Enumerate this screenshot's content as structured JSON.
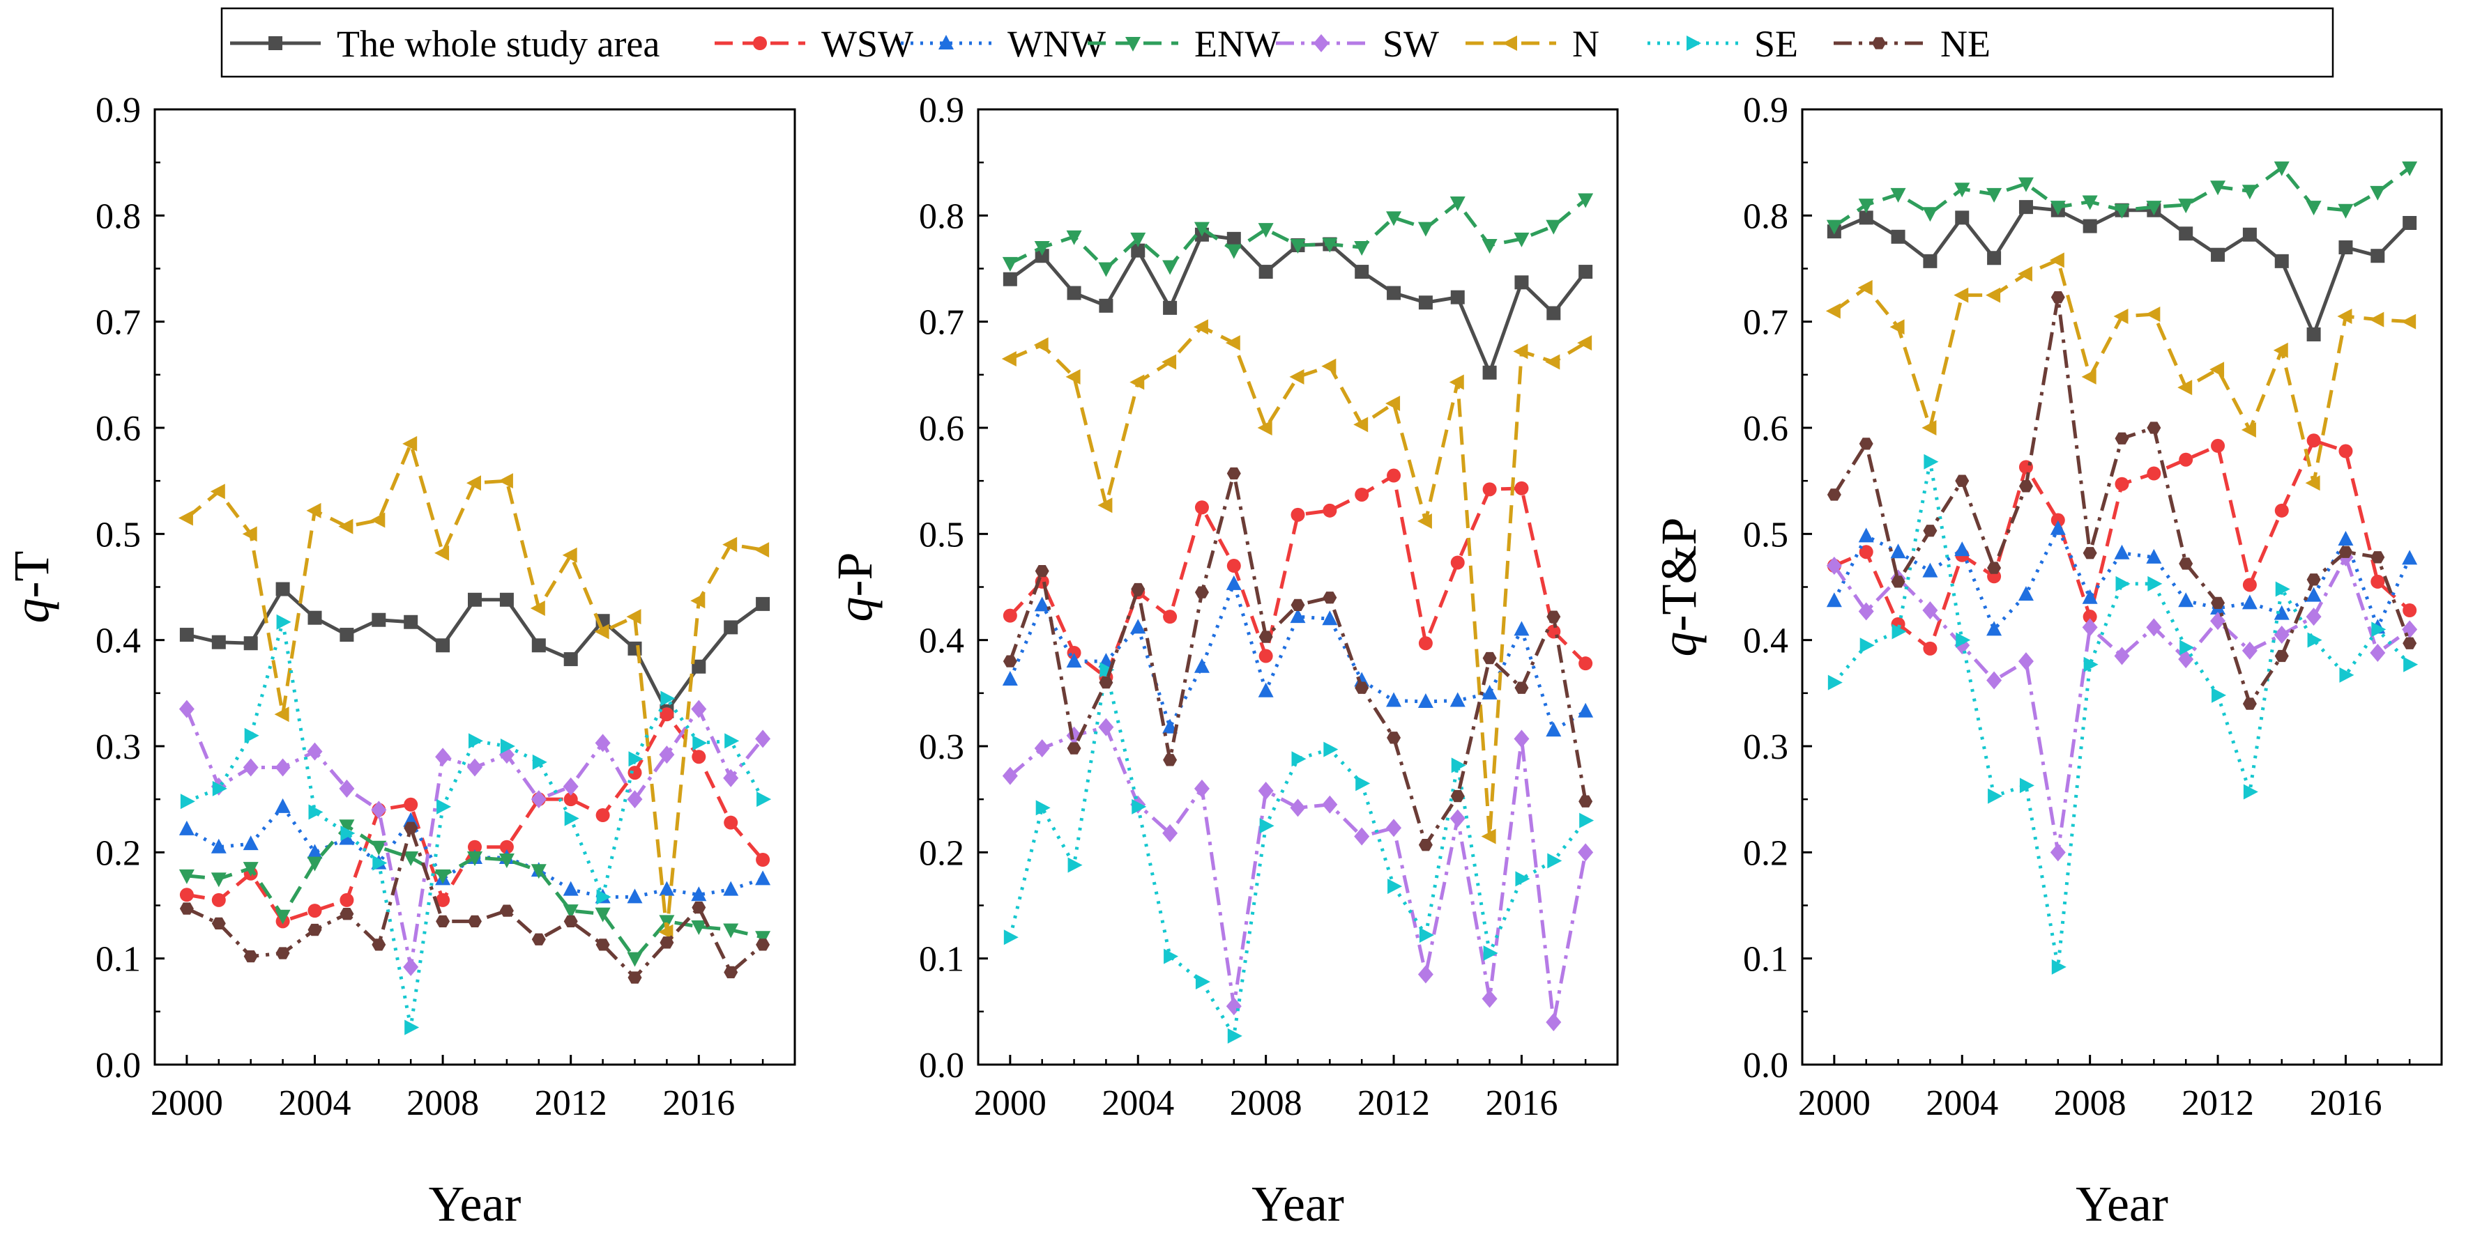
{
  "figure_title": "",
  "chart_data": [
    {
      "type": "line",
      "panel": "left",
      "title": "",
      "xlabel": "Year",
      "ylabel_italic": "q",
      "ylabel_rest": "-T",
      "x": [
        2000,
        2001,
        2002,
        2003,
        2004,
        2005,
        2006,
        2007,
        2008,
        2009,
        2010,
        2011,
        2012,
        2013,
        2014,
        2015,
        2016,
        2017,
        2018
      ],
      "xlim": [
        1999,
        2019
      ],
      "xticks": [
        2000,
        2004,
        2008,
        2012,
        2016
      ],
      "xtick_labels": [
        "2000",
        "2004",
        "2008",
        "2012",
        "2016"
      ],
      "ylim": [
        0.0,
        0.9
      ],
      "yticks": [
        0.0,
        0.1,
        0.2,
        0.3,
        0.4,
        0.5,
        0.6,
        0.7,
        0.8,
        0.9
      ],
      "ytick_labels": [
        "0.0",
        "0.1",
        "0.2",
        "0.3",
        "0.4",
        "0.5",
        "0.6",
        "0.7",
        "0.8",
        "0.9"
      ],
      "grid": false,
      "series": [
        {
          "name": "The whole study area",
          "values": [
            0.405,
            0.398,
            0.397,
            0.448,
            0.421,
            0.405,
            0.419,
            0.417,
            0.395,
            0.438,
            0.438,
            0.395,
            0.382,
            0.418,
            0.392,
            0.333,
            0.375,
            0.412,
            0.434
          ]
        },
        {
          "name": "WSW",
          "values": [
            0.16,
            0.155,
            0.18,
            0.135,
            0.145,
            0.155,
            0.24,
            0.245,
            0.155,
            0.205,
            0.205,
            0.25,
            0.25,
            0.235,
            0.275,
            0.33,
            0.29,
            0.228,
            0.193
          ]
        },
        {
          "name": "WNW",
          "values": [
            0.222,
            0.205,
            0.208,
            0.243,
            0.2,
            0.213,
            0.19,
            0.23,
            0.175,
            0.195,
            0.195,
            0.183,
            0.165,
            0.158,
            0.158,
            0.165,
            0.16,
            0.165,
            0.175
          ]
        },
        {
          "name": "ENW",
          "values": [
            0.178,
            0.175,
            0.185,
            0.14,
            0.19,
            0.225,
            0.205,
            0.195,
            0.178,
            0.195,
            0.193,
            0.183,
            0.145,
            0.142,
            0.1,
            0.135,
            0.13,
            0.127,
            0.12
          ]
        },
        {
          "name": "SW",
          "values": [
            0.335,
            0.262,
            0.28,
            0.28,
            0.295,
            0.26,
            0.24,
            0.092,
            0.29,
            0.28,
            0.292,
            0.25,
            0.262,
            0.303,
            0.25,
            0.292,
            0.335,
            0.27,
            0.307
          ]
        },
        {
          "name": "N",
          "values": [
            0.515,
            0.54,
            0.5,
            0.33,
            0.522,
            0.507,
            0.513,
            0.585,
            0.482,
            0.548,
            0.55,
            0.43,
            0.48,
            0.408,
            0.422,
            0.125,
            0.437,
            0.49,
            0.485
          ]
        },
        {
          "name": "SE",
          "values": [
            0.248,
            0.26,
            0.31,
            0.417,
            0.238,
            0.218,
            0.19,
            0.035,
            0.243,
            0.305,
            0.3,
            0.285,
            0.232,
            0.158,
            0.288,
            0.345,
            0.303,
            0.305,
            0.25
          ]
        },
        {
          "name": "NE",
          "values": [
            0.147,
            0.133,
            0.102,
            0.105,
            0.127,
            0.142,
            0.113,
            0.223,
            0.135,
            0.135,
            0.145,
            0.118,
            0.135,
            0.113,
            0.082,
            0.115,
            0.148,
            0.087,
            0.113
          ]
        }
      ]
    },
    {
      "type": "line",
      "panel": "middle",
      "title": "",
      "xlabel": "Year",
      "ylabel_italic": "q",
      "ylabel_rest": "-P",
      "x": [
        2000,
        2001,
        2002,
        2003,
        2004,
        2005,
        2006,
        2007,
        2008,
        2009,
        2010,
        2011,
        2012,
        2013,
        2014,
        2015,
        2016,
        2017,
        2018
      ],
      "xlim": [
        1999,
        2019
      ],
      "xticks": [
        2000,
        2004,
        2008,
        2012,
        2016
      ],
      "xtick_labels": [
        "2000",
        "2004",
        "2008",
        "2012",
        "2016"
      ],
      "ylim": [
        0.0,
        0.9
      ],
      "yticks": [
        0.0,
        0.1,
        0.2,
        0.3,
        0.4,
        0.5,
        0.6,
        0.7,
        0.8,
        0.9
      ],
      "ytick_labels": [
        "0.0",
        "0.1",
        "0.2",
        "0.3",
        "0.4",
        "0.5",
        "0.6",
        "0.7",
        "0.8",
        "0.9"
      ],
      "grid": false,
      "series": [
        {
          "name": "The whole study area",
          "values": [
            0.74,
            0.762,
            0.727,
            0.715,
            0.767,
            0.713,
            0.782,
            0.778,
            0.747,
            0.772,
            0.773,
            0.747,
            0.727,
            0.718,
            0.723,
            0.652,
            0.737,
            0.708,
            0.747
          ]
        },
        {
          "name": "WSW",
          "values": [
            0.423,
            0.455,
            0.388,
            0.365,
            0.445,
            0.422,
            0.525,
            0.47,
            0.385,
            0.518,
            0.522,
            0.537,
            0.555,
            0.397,
            0.473,
            0.542,
            0.543,
            0.408,
            0.378
          ]
        },
        {
          "name": "WNW",
          "values": [
            0.363,
            0.433,
            0.38,
            0.38,
            0.412,
            0.318,
            0.375,
            0.453,
            0.352,
            0.422,
            0.42,
            0.362,
            0.343,
            0.342,
            0.343,
            0.35,
            0.41,
            0.315,
            0.333
          ]
        },
        {
          "name": "ENW",
          "values": [
            0.755,
            0.77,
            0.78,
            0.75,
            0.778,
            0.752,
            0.788,
            0.767,
            0.787,
            0.772,
            0.773,
            0.77,
            0.798,
            0.788,
            0.812,
            0.772,
            0.778,
            0.79,
            0.815
          ]
        },
        {
          "name": "SW",
          "values": [
            0.272,
            0.298,
            0.31,
            0.318,
            0.245,
            0.218,
            0.26,
            0.055,
            0.258,
            0.242,
            0.245,
            0.215,
            0.223,
            0.085,
            0.232,
            0.062,
            0.307,
            0.04,
            0.2
          ]
        },
        {
          "name": "N",
          "values": [
            0.665,
            0.678,
            0.648,
            0.527,
            0.643,
            0.662,
            0.695,
            0.68,
            0.6,
            0.648,
            0.658,
            0.603,
            0.623,
            0.512,
            0.643,
            0.215,
            0.672,
            0.662,
            0.68
          ]
        },
        {
          "name": "SE",
          "values": [
            0.12,
            0.242,
            0.188,
            0.372,
            0.243,
            0.102,
            0.078,
            0.027,
            0.225,
            0.288,
            0.297,
            0.265,
            0.168,
            0.122,
            0.282,
            0.105,
            0.175,
            0.192,
            0.23
          ]
        },
        {
          "name": "NE",
          "values": [
            0.38,
            0.465,
            0.298,
            0.36,
            0.448,
            0.287,
            0.445,
            0.557,
            0.403,
            0.433,
            0.44,
            0.355,
            0.308,
            0.207,
            0.253,
            0.383,
            0.355,
            0.422,
            0.248
          ]
        }
      ]
    },
    {
      "type": "line",
      "panel": "right",
      "title": "",
      "xlabel": "Year",
      "ylabel_italic": "q",
      "ylabel_rest": "-T&P",
      "x": [
        2000,
        2001,
        2002,
        2003,
        2004,
        2005,
        2006,
        2007,
        2008,
        2009,
        2010,
        2011,
        2012,
        2013,
        2014,
        2015,
        2016,
        2017,
        2018
      ],
      "xlim": [
        1999,
        2019
      ],
      "xticks": [
        2000,
        2004,
        2008,
        2012,
        2016
      ],
      "xtick_labels": [
        "2000",
        "2004",
        "2008",
        "2012",
        "2016"
      ],
      "ylim": [
        0.0,
        0.9
      ],
      "yticks": [
        0.0,
        0.1,
        0.2,
        0.3,
        0.4,
        0.5,
        0.6,
        0.7,
        0.8,
        0.9
      ],
      "ytick_labels": [
        "0.0",
        "0.1",
        "0.2",
        "0.3",
        "0.4",
        "0.5",
        "0.6",
        "0.7",
        "0.8",
        "0.9"
      ],
      "grid": false,
      "series": [
        {
          "name": "The whole study area",
          "values": [
            0.785,
            0.798,
            0.78,
            0.757,
            0.798,
            0.76,
            0.808,
            0.805,
            0.79,
            0.805,
            0.805,
            0.783,
            0.763,
            0.782,
            0.757,
            0.688,
            0.77,
            0.762,
            0.793
          ]
        },
        {
          "name": "WSW",
          "values": [
            0.47,
            0.483,
            0.415,
            0.392,
            0.48,
            0.46,
            0.563,
            0.513,
            0.422,
            0.547,
            0.557,
            0.57,
            0.583,
            0.452,
            0.522,
            0.588,
            0.578,
            0.455,
            0.428
          ]
        },
        {
          "name": "WNW",
          "values": [
            0.437,
            0.498,
            0.483,
            0.465,
            0.485,
            0.41,
            0.443,
            0.505,
            0.44,
            0.482,
            0.478,
            0.437,
            0.43,
            0.435,
            0.425,
            0.442,
            0.495,
            0.412,
            0.477
          ]
        },
        {
          "name": "ENW",
          "values": [
            0.79,
            0.81,
            0.82,
            0.802,
            0.825,
            0.82,
            0.83,
            0.808,
            0.813,
            0.805,
            0.808,
            0.81,
            0.827,
            0.823,
            0.845,
            0.808,
            0.805,
            0.822,
            0.845
          ]
        },
        {
          "name": "SW",
          "values": [
            0.47,
            0.427,
            0.458,
            0.428,
            0.395,
            0.362,
            0.38,
            0.2,
            0.412,
            0.385,
            0.412,
            0.382,
            0.418,
            0.39,
            0.405,
            0.422,
            0.478,
            0.388,
            0.41
          ]
        },
        {
          "name": "N",
          "values": [
            0.71,
            0.732,
            0.695,
            0.6,
            0.725,
            0.725,
            0.745,
            0.758,
            0.648,
            0.705,
            0.707,
            0.638,
            0.655,
            0.598,
            0.673,
            0.548,
            0.705,
            0.702,
            0.7
          ]
        },
        {
          "name": "SE",
          "values": [
            0.36,
            0.395,
            0.408,
            0.568,
            0.4,
            0.253,
            0.263,
            0.092,
            0.377,
            0.453,
            0.453,
            0.393,
            0.348,
            0.257,
            0.448,
            0.4,
            0.367,
            0.41,
            0.377
          ]
        },
        {
          "name": "NE",
          "values": [
            0.537,
            0.585,
            0.455,
            0.503,
            0.55,
            0.468,
            0.545,
            0.723,
            0.482,
            0.59,
            0.6,
            0.472,
            0.435,
            0.34,
            0.385,
            0.457,
            0.483,
            0.478,
            0.397
          ]
        }
      ]
    }
  ],
  "legend": {
    "placement": "top",
    "entries": [
      {
        "name": "The whole study area",
        "color": "#4d4d4d",
        "dash": "solid",
        "marker": "square"
      },
      {
        "name": "WSW",
        "color": "#ef3b3b",
        "dash": "dash",
        "marker": "circle"
      },
      {
        "name": "WNW",
        "color": "#1f6fe0",
        "dash": "dot",
        "marker": "triangle-up"
      },
      {
        "name": "ENW",
        "color": "#2e9e5b",
        "dash": "dash",
        "marker": "triangle-down"
      },
      {
        "name": "SW",
        "color": "#b57ae6",
        "dash": "dashdot",
        "marker": "diamond"
      },
      {
        "name": "N",
        "color": "#d4a017",
        "dash": "dash",
        "marker": "triangle-left"
      },
      {
        "name": "SE",
        "color": "#15c7cf",
        "dash": "dot",
        "marker": "triangle-right"
      },
      {
        "name": "NE",
        "color": "#6b3c36",
        "dash": "dashdot",
        "marker": "hexagon"
      }
    ]
  }
}
